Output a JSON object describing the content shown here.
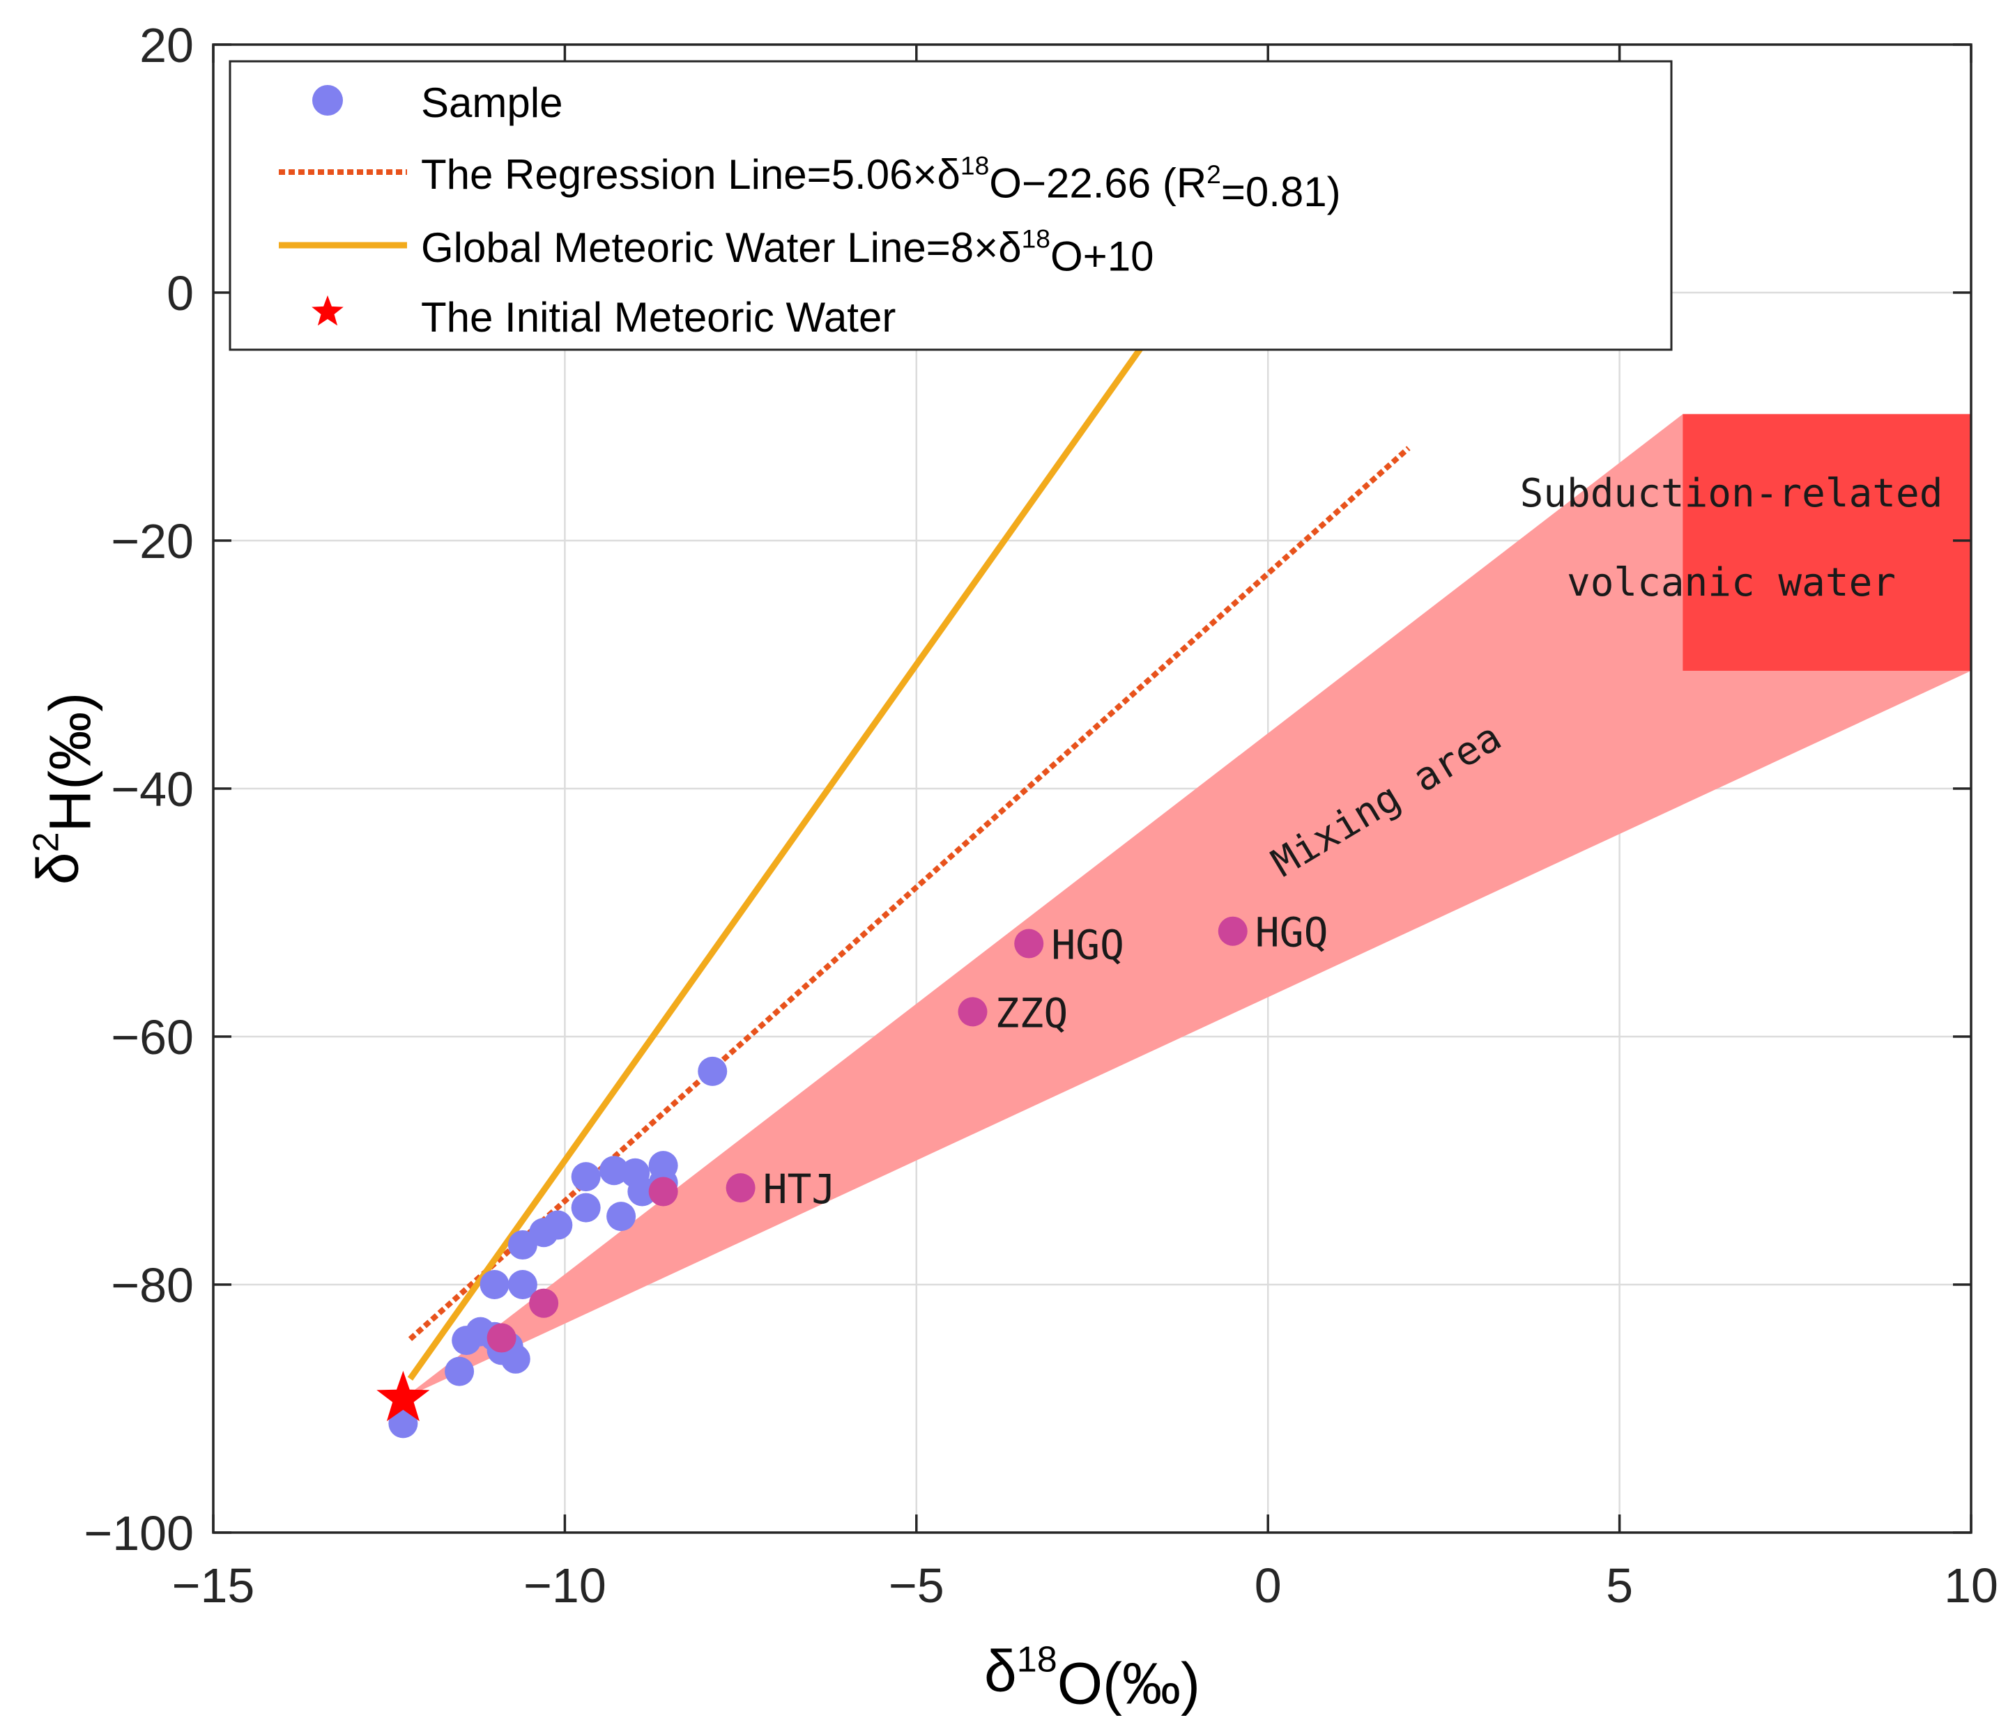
{
  "chart_data": {
    "type": "scatter",
    "xlabel": "δ18O(‰)",
    "ylabel": "δ2H(‰)",
    "xlim": [
      -15,
      10
    ],
    "ylim": [
      -100,
      20
    ],
    "xticks": [
      -15,
      -10,
      -5,
      0,
      5,
      10
    ],
    "yticks": [
      -100,
      -80,
      -60,
      -40,
      -20,
      0,
      20
    ],
    "xtick_labels": [
      "−15",
      "−10",
      "−5",
      "0",
      "5",
      "10"
    ],
    "ytick_labels": [
      "−100",
      "−80",
      "−60",
      "−40",
      "−20",
      "0",
      "20"
    ],
    "grid": true,
    "legend_position": "top-left",
    "colors": {
      "sample": "#8080f0",
      "highlight": "#cc4499",
      "regression": "#e8521c",
      "gmwl": "#f2aa1c",
      "initial": "#ff0000",
      "mixing": "#ff9b9b",
      "volcanic": "#ff4545"
    },
    "legend": [
      {
        "key": "sample",
        "label": "Sample"
      },
      {
        "key": "regression",
        "label": "The Regression Line=5.06×δ18O−22.66 (R2=0.81)"
      },
      {
        "key": "gmwl",
        "label": "Global Meteoric Water Line=8×δ18O+10"
      },
      {
        "key": "initial",
        "label": "The Initial Meteoric Water"
      }
    ],
    "series": [
      {
        "name": "Sample",
        "points": [
          {
            "x": -12.3,
            "y": -91.2
          },
          {
            "x": -11.5,
            "y": -87.0
          },
          {
            "x": -11.4,
            "y": -84.5
          },
          {
            "x": -11.2,
            "y": -83.8
          },
          {
            "x": -11.0,
            "y": -84.2
          },
          {
            "x": -10.9,
            "y": -85.3
          },
          {
            "x": -10.8,
            "y": -85.0
          },
          {
            "x": -10.7,
            "y": -86.0
          },
          {
            "x": -11.0,
            "y": -80.0
          },
          {
            "x": -10.6,
            "y": -80.0
          },
          {
            "x": -10.6,
            "y": -76.8
          },
          {
            "x": -10.3,
            "y": -75.8
          },
          {
            "x": -10.1,
            "y": -75.2
          },
          {
            "x": -9.7,
            "y": -73.8
          },
          {
            "x": -9.7,
            "y": -71.3
          },
          {
            "x": -9.3,
            "y": -70.8
          },
          {
            "x": -9.2,
            "y": -74.5
          },
          {
            "x": -9.0,
            "y": -71.0
          },
          {
            "x": -8.9,
            "y": -72.5
          },
          {
            "x": -8.6,
            "y": -70.4
          },
          {
            "x": -8.6,
            "y": -71.8
          },
          {
            "x": -7.9,
            "y": -62.8
          }
        ]
      },
      {
        "name": "Highlighted",
        "points": [
          {
            "x": -10.3,
            "y": -81.5,
            "label": ""
          },
          {
            "x": -10.9,
            "y": -84.3,
            "label": ""
          },
          {
            "x": -8.6,
            "y": -72.5,
            "label": ""
          },
          {
            "x": -7.5,
            "y": -72.2,
            "label": "HTJ"
          },
          {
            "x": -4.2,
            "y": -58.0,
            "label": "ZZQ"
          },
          {
            "x": -3.4,
            "y": -52.5,
            "label": "HGQ"
          },
          {
            "x": -0.5,
            "y": -51.5,
            "label": "HGQ"
          }
        ]
      }
    ],
    "lines": [
      {
        "name": "regression",
        "slope": 5.06,
        "intercept": -22.66,
        "x_start": -12.2,
        "x_end": 2.0,
        "style": "dotted"
      },
      {
        "name": "gmwl",
        "slope": 8,
        "intercept": 10,
        "x_start": -12.2,
        "x_end": -1.8,
        "style": "solid"
      }
    ],
    "initial_meteoric_water": {
      "x": -12.3,
      "y": -89.2
    },
    "mixing_area": {
      "polygon": [
        [
          -12.3,
          -89.2
        ],
        [
          5.9,
          -9.8
        ],
        [
          10.0,
          -9.8
        ],
        [
          10.0,
          -30.5
        ]
      ],
      "label": "Mixing area"
    },
    "volcanic_box": {
      "x_min": 5.9,
      "x_max": 10.0,
      "y_min": -30.5,
      "y_max": -9.8,
      "label_line1": "Subduction-related",
      "label_line2": "volcanic water"
    }
  }
}
